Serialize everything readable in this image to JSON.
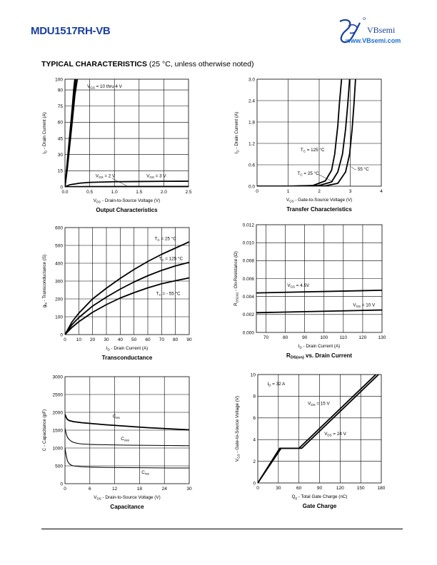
{
  "header": {
    "part_number": "MDU1517RH-VB",
    "brand": "VBsemi",
    "website": "www.VBsemi.com"
  },
  "section": {
    "title": "TYPICAL CHARACTERISTICS",
    "note": "(25 °C, unless otherwise noted)"
  },
  "chart_data": [
    {
      "id": "output",
      "type": "line",
      "title": "Output Characteristics",
      "xlabel": "V_DS - Drain-to-Source Voltage (V)",
      "ylabel": "I_D - Drain Current (A)",
      "xlim": [
        0,
        2.5
      ],
      "ylim": [
        0,
        100
      ],
      "xticks": [
        "0.0",
        "0.5",
        "1.0",
        "1.5",
        "2.0",
        "2.5"
      ],
      "yticks": [
        "0",
        "15",
        "30",
        "45",
        "60",
        "75",
        "90",
        "100"
      ],
      "ytick_values": [
        0,
        15,
        30,
        45,
        60,
        75,
        90,
        100
      ],
      "grid": true,
      "series": [
        {
          "x": [
            0,
            0.05,
            0.1,
            0.15,
            0.2,
            0.22
          ],
          "y": [
            0,
            22,
            45,
            68,
            92,
            100
          ]
        },
        {
          "x": [
            0,
            0.05,
            0.1,
            0.15,
            0.18,
            0.2
          ],
          "y": [
            0,
            25,
            50,
            75,
            92,
            100
          ]
        },
        {
          "x": [
            0,
            0.05,
            0.1,
            0.15,
            0.2,
            0.25
          ],
          "y": [
            0,
            18,
            40,
            62,
            85,
            100
          ]
        },
        {
          "x": [
            0,
            0.1,
            0.3,
            0.5,
            1.0,
            1.5,
            2.0,
            2.5
          ],
          "y": [
            0,
            2,
            3.5,
            4.2,
            4.8,
            5.0,
            5.2,
            5.3
          ]
        },
        {
          "x": [
            0,
            0.1,
            0.2,
            0.3,
            0.5,
            1.0,
            1.5,
            2.0,
            2.5
          ],
          "y": [
            0,
            0.1,
            0.2,
            0.25,
            0.3,
            0.35,
            0.38,
            0.4,
            0.4
          ]
        }
      ],
      "annotations": [
        {
          "text": "V_GS = 10 thru 4 V",
          "x": 0.45,
          "y": 92
        },
        {
          "text": "V_GS = 2 V",
          "x": 0.62,
          "y": 9
        },
        {
          "text": "V_GS = 3 V",
          "x": 1.65,
          "y": 9
        }
      ]
    },
    {
      "id": "transfer",
      "type": "line",
      "title": "Transfer Characteristics",
      "xlabel": "V_GS - Gate-to-Source Voltage (V)",
      "ylabel": "I_D - Drain Current (A)",
      "xlim": [
        0,
        4
      ],
      "ylim": [
        0,
        3.0
      ],
      "xticks": [
        "0",
        "1",
        "2",
        "3",
        "4"
      ],
      "yticks": [
        "0.0",
        "0.6",
        "1.2",
        "1.8",
        "2.4",
        "3.0"
      ],
      "grid": true,
      "series": [
        {
          "x": [
            0,
            1,
            1.8,
            2.2,
            2.4,
            2.5,
            2.6,
            2.65,
            2.72
          ],
          "y": [
            0,
            0,
            0.02,
            0.15,
            0.45,
            0.9,
            1.7,
            2.3,
            3.0
          ]
        },
        {
          "x": [
            0,
            1,
            2.0,
            2.4,
            2.6,
            2.75,
            2.85,
            2.92,
            2.98
          ],
          "y": [
            0,
            0,
            0.02,
            0.12,
            0.4,
            0.9,
            1.6,
            2.3,
            3.0
          ]
        },
        {
          "x": [
            0,
            1,
            2.2,
            2.6,
            2.85,
            2.98,
            3.06,
            3.12,
            3.17
          ],
          "y": [
            0,
            0,
            0.01,
            0.08,
            0.4,
            0.9,
            1.6,
            2.3,
            3.0
          ]
        }
      ],
      "annotations": [
        {
          "text": "T_C = 125 °C",
          "x": 1.4,
          "y": 0.98
        },
        {
          "text": "T_C = 25 °C",
          "x": 1.3,
          "y": 0.32
        },
        {
          "text": "- 55 °C",
          "x": 3.15,
          "y": 0.44
        }
      ]
    },
    {
      "id": "transconductance",
      "type": "line",
      "title": "Transconductance",
      "xlabel": "I_D - Drain Current (A)",
      "ylabel": "g_fs - Transconductance (S)",
      "xlim": [
        0,
        90
      ],
      "ylim": [
        0,
        600
      ],
      "xticks": [
        "0",
        "10",
        "20",
        "30",
        "40",
        "50",
        "60",
        "70",
        "80",
        "90"
      ],
      "yticks": [
        "0",
        "100",
        "200",
        "300",
        "400",
        "500",
        "600"
      ],
      "grid": true,
      "series": [
        {
          "x": [
            0,
            5,
            10,
            20,
            30,
            40,
            50,
            60,
            70,
            80,
            90
          ],
          "y": [
            0,
            70,
            120,
            200,
            260,
            315,
            365,
            410,
            450,
            485,
            520
          ]
        },
        {
          "x": [
            0,
            5,
            10,
            20,
            30,
            40,
            50,
            60,
            70,
            80,
            90
          ],
          "y": [
            0,
            55,
            95,
            160,
            210,
            255,
            295,
            330,
            360,
            385,
            405
          ]
        },
        {
          "x": [
            0,
            5,
            10,
            20,
            30,
            40,
            50,
            60,
            70,
            80,
            90
          ],
          "y": [
            0,
            40,
            72,
            125,
            168,
            205,
            235,
            262,
            285,
            302,
            318
          ]
        }
      ],
      "annotations": [
        {
          "text": "T_C = 25 °C",
          "x": 65,
          "y": 530
        },
        {
          "text": "T_C = 125 °C",
          "x": 68,
          "y": 418
        },
        {
          "text": "T_C = - 55 °C",
          "x": 66,
          "y": 222
        }
      ]
    },
    {
      "id": "rdson",
      "type": "line",
      "title": "R_DS(on) vs. Drain Current",
      "xlabel": "I_D - Drain Current (A)",
      "ylabel": "R_DS(on) - On-Resistance (Ω)",
      "xlim": [
        65,
        130
      ],
      "ylim": [
        0.0,
        0.012
      ],
      "xticks": [
        "70",
        "80",
        "90",
        "100",
        "110",
        "120",
        "130"
      ],
      "xtick_values": [
        70,
        80,
        90,
        100,
        110,
        120,
        130
      ],
      "yticks": [
        "0.000",
        "0.002",
        "0.004",
        "0.006",
        "0.008",
        "0.010",
        "0.012"
      ],
      "grid": true,
      "series": [
        {
          "x": [
            65,
            130
          ],
          "y": [
            0.0044,
            0.0047
          ]
        },
        {
          "x": [
            65,
            130
          ],
          "y": [
            0.0022,
            0.0025
          ]
        }
      ],
      "annotations": [
        {
          "text": "V_GS = 4.5V",
          "x": 81,
          "y": 0.0051
        },
        {
          "text": "V_GS = 10 V",
          "x": 115,
          "y": 0.0029
        }
      ]
    },
    {
      "id": "capacitance",
      "type": "line",
      "title": "Capacitance",
      "xlabel": "V_DS - Drain-to-Source Voltage (V)",
      "ylabel": "C - Capacitance (pF)",
      "xlim": [
        0,
        30
      ],
      "ylim": [
        0,
        3000
      ],
      "xticks": [
        "0",
        "6",
        "12",
        "18",
        "24",
        "30"
      ],
      "yticks": [
        "0",
        "500",
        "1000",
        "1500",
        "2000",
        "2500",
        "3000"
      ],
      "grid": true,
      "series": [
        {
          "x": [
            0,
            0.3,
            0.6,
            1,
            2,
            4,
            6,
            10,
            15,
            20,
            25,
            30
          ],
          "y": [
            1950,
            1850,
            1800,
            1770,
            1740,
            1710,
            1690,
            1650,
            1610,
            1570,
            1540,
            1510
          ]
        },
        {
          "x": [
            0,
            0.3,
            0.6,
            1,
            1.5,
            2,
            3,
            4,
            6,
            10,
            15,
            20,
            25,
            30
          ],
          "y": [
            1550,
            1400,
            1300,
            1240,
            1190,
            1160,
            1130,
            1115,
            1100,
            1090,
            1080,
            1075,
            1070,
            1065
          ]
        },
        {
          "x": [
            0,
            0.3,
            0.6,
            1,
            1.5,
            2,
            3,
            4,
            6,
            10,
            15,
            20,
            25,
            30
          ],
          "y": [
            1000,
            780,
            640,
            560,
            520,
            500,
            485,
            475,
            465,
            455,
            450,
            445,
            440,
            440
          ]
        }
      ],
      "annotations": [
        {
          "text": "C_iss",
          "x": 11.5,
          "y": 1850
        },
        {
          "text": "C_oss",
          "x": 13.5,
          "y": 1220
        },
        {
          "text": "C_rss",
          "x": 18.5,
          "y": 280
        }
      ]
    },
    {
      "id": "gatecharge",
      "type": "line",
      "title": "Gate Charge",
      "xlabel": "Q_g - Total Gate Charge (nC)",
      "ylabel": "V_GS - Gate-to-Source Voltage (V)",
      "xlim": [
        0,
        180
      ],
      "ylim": [
        0,
        10
      ],
      "xticks": [
        "0",
        "30",
        "60",
        "90",
        "120",
        "150",
        "180"
      ],
      "yticks": [
        "0",
        "2",
        "4",
        "6",
        "8",
        "10"
      ],
      "grid": true,
      "series": [
        {
          "x": [
            0,
            32,
            60,
            172
          ],
          "y": [
            0,
            3.2,
            3.2,
            10
          ]
        },
        {
          "x": [
            0,
            34,
            64,
            176
          ],
          "y": [
            0,
            3.2,
            3.2,
            10
          ]
        }
      ],
      "annotations": [
        {
          "text": "I_D = 32 A",
          "x": 14,
          "y": 9.0
        },
        {
          "text": "V_DS = 15 V",
          "x": 73,
          "y": 7.2
        },
        {
          "text": "V_DS = 24 V",
          "x": 97,
          "y": 4.4
        }
      ]
    }
  ]
}
